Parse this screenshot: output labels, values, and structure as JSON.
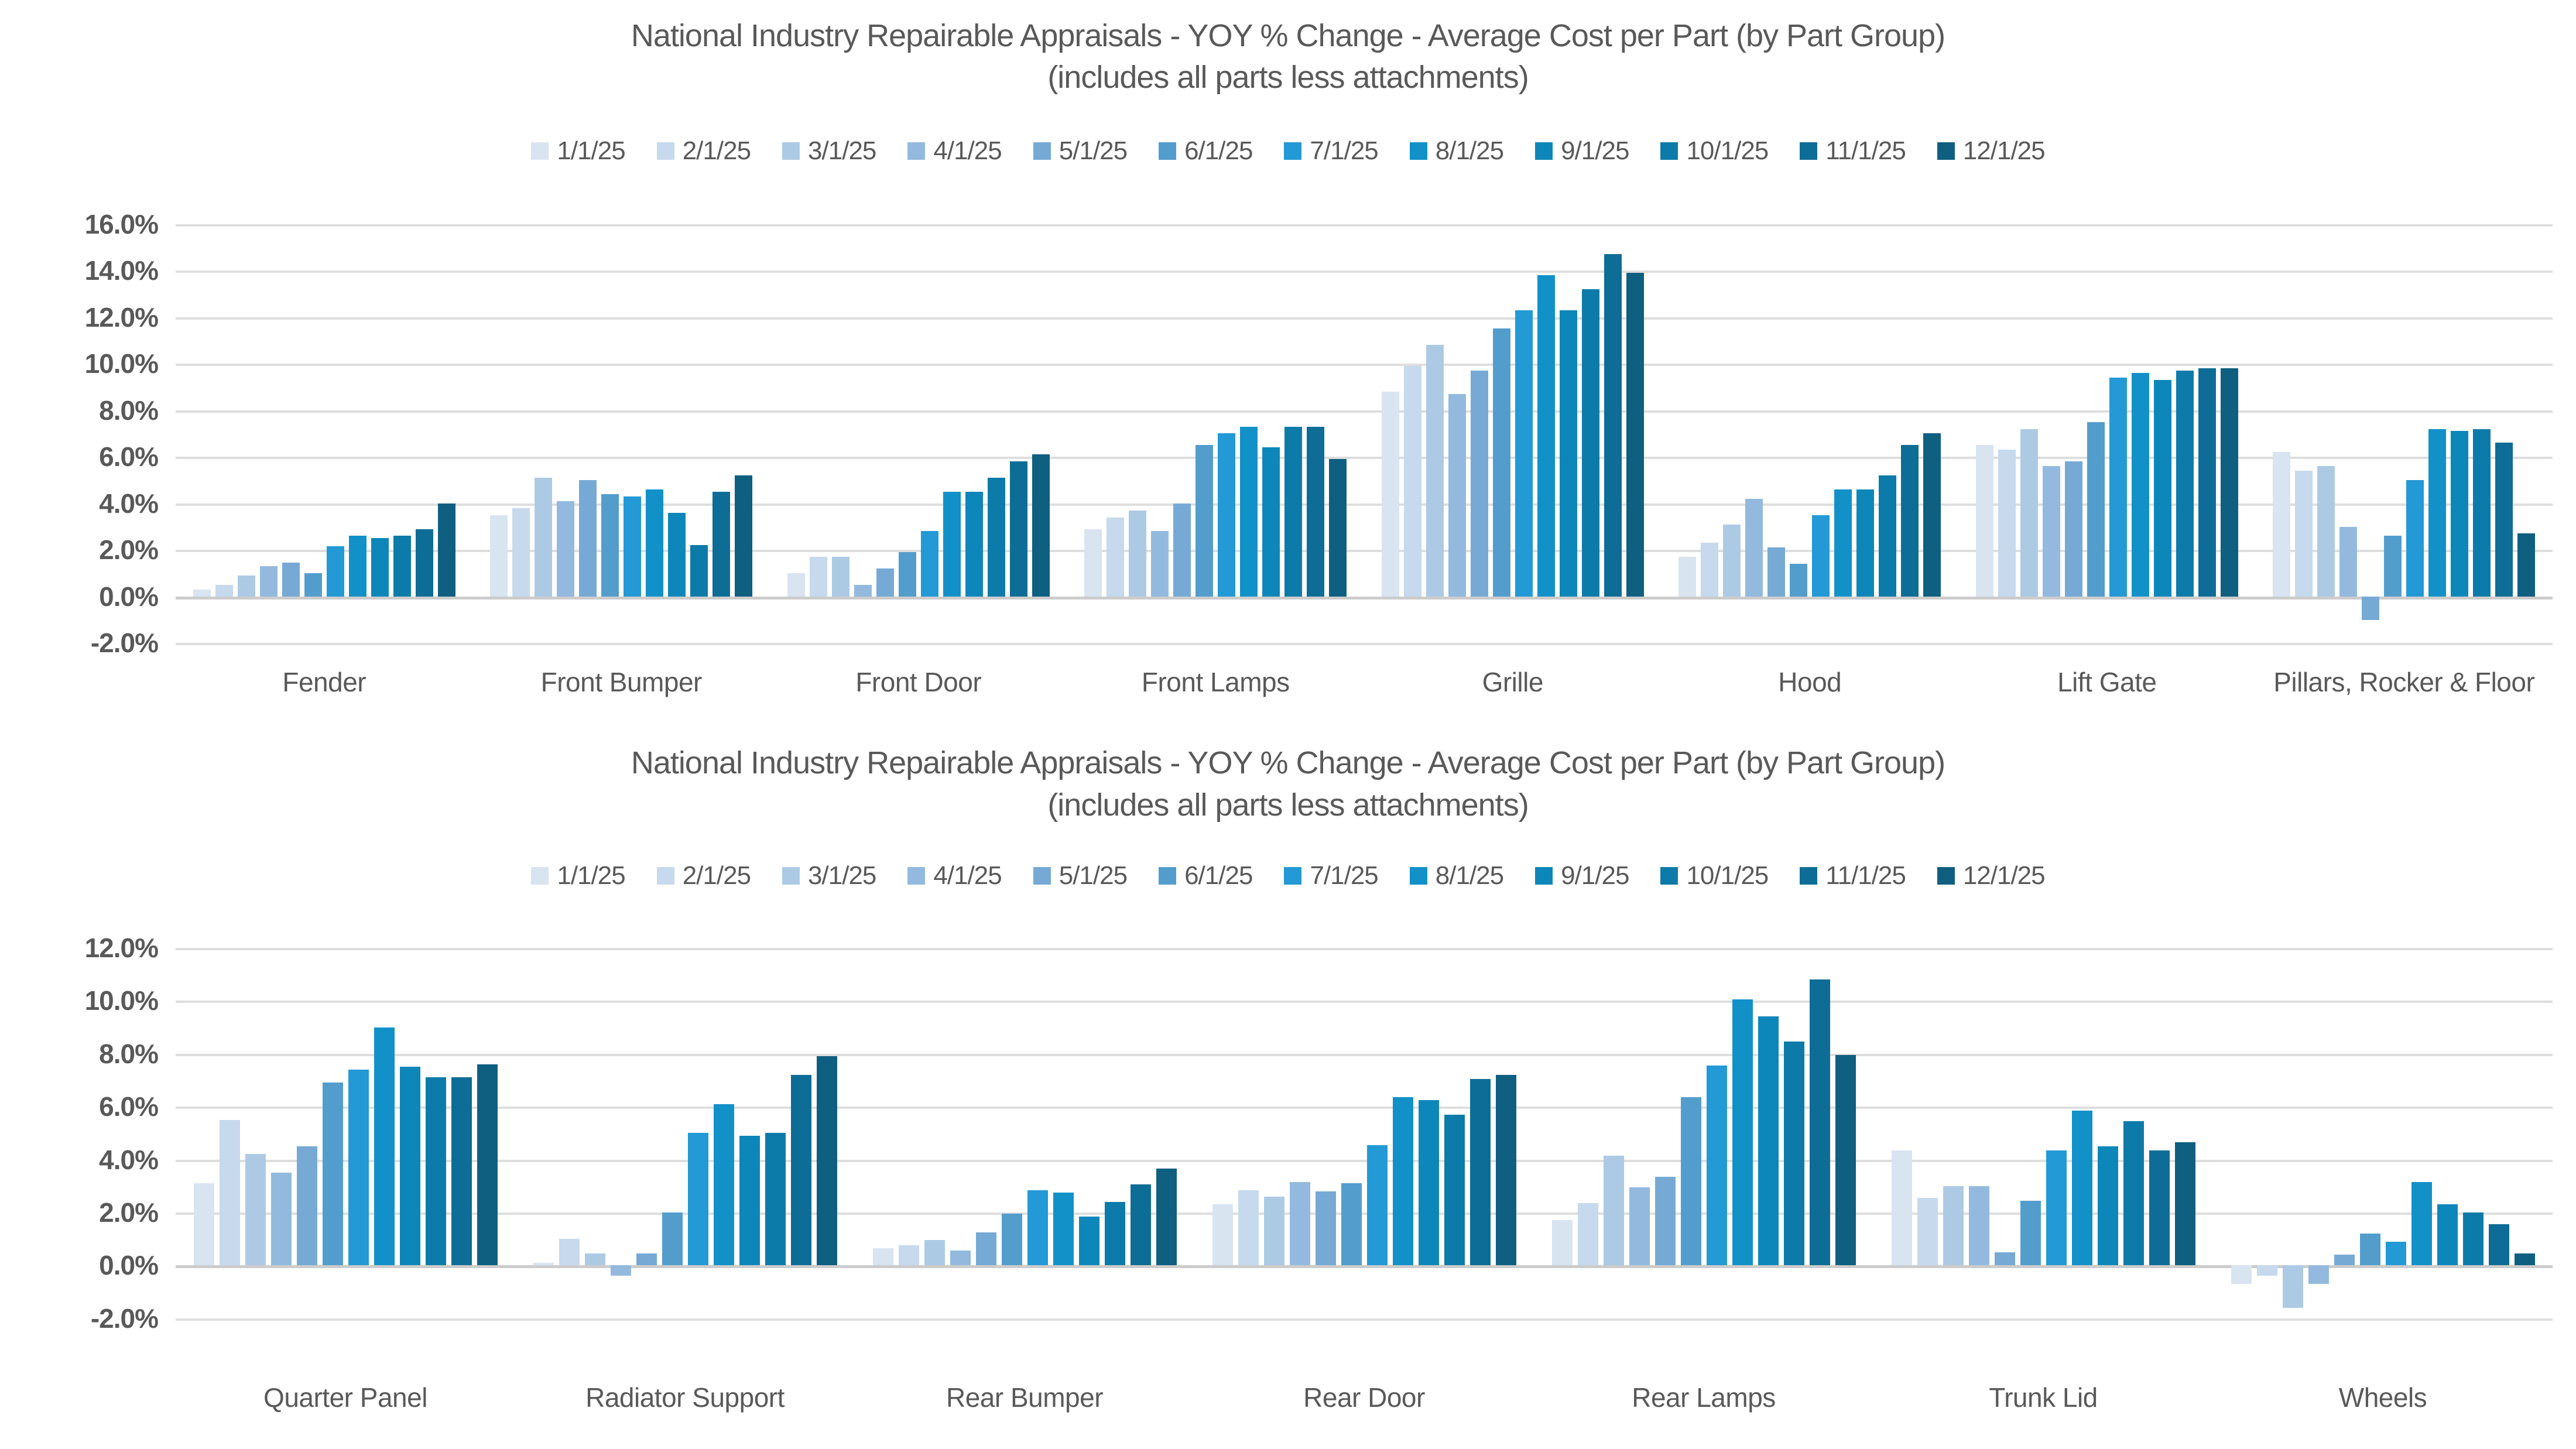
{
  "palette": [
    "#d9e4f1",
    "#c6d9ed",
    "#adcae5",
    "#93bade",
    "#76aad5",
    "#539dcd",
    "#2399d6",
    "#1291c9",
    "#0d87ba",
    "#0d7ba9",
    "#0e6d96",
    "#0f5f81"
  ],
  "text_color": "#595959",
  "chart_data": [
    {
      "type": "bar",
      "title": "National Industry Repairable Appraisals - YOY % Change - Average Cost per Part (by Part Group)",
      "subtitle": "(includes all parts less attachments)",
      "legend_position": "top",
      "grid": true,
      "ylim": [
        -2,
        16
      ],
      "ystep": 2,
      "y_tick_labels": [
        "16.0%",
        "14.0%",
        "12.0%",
        "10.0%",
        "8.0%",
        "6.0%",
        "4.0%",
        "2.0%",
        "0.0%",
        "-2.0%"
      ],
      "categories": [
        "Fender",
        "Front Bumper",
        "Front Door",
        "Front Lamps",
        "Grille",
        "Hood",
        "Lift Gate",
        "Pillars, Rocker & Floor"
      ],
      "series": [
        {
          "name": "1/1/25",
          "values": [
            0.3,
            3.5,
            1.0,
            2.9,
            8.8,
            1.7,
            6.5,
            6.2
          ]
        },
        {
          "name": "2/1/25",
          "values": [
            0.5,
            3.8,
            1.7,
            3.4,
            9.9,
            2.3,
            6.3,
            5.4
          ]
        },
        {
          "name": "3/1/25",
          "values": [
            0.9,
            5.1,
            1.7,
            3.7,
            10.8,
            3.1,
            7.2,
            5.6
          ]
        },
        {
          "name": "4/1/25",
          "values": [
            1.3,
            4.1,
            0.5,
            2.8,
            8.7,
            4.2,
            5.6,
            3.0
          ]
        },
        {
          "name": "5/1/25",
          "values": [
            1.45,
            5.0,
            1.2,
            4.0,
            9.7,
            2.1,
            5.8,
            -1.0
          ]
        },
        {
          "name": "6/1/25",
          "values": [
            1.0,
            4.4,
            1.9,
            6.5,
            11.5,
            1.4,
            7.5,
            2.6
          ]
        },
        {
          "name": "7/1/25",
          "values": [
            2.15,
            4.3,
            2.8,
            7.0,
            12.3,
            3.5,
            9.4,
            5.0
          ]
        },
        {
          "name": "8/1/25",
          "values": [
            2.6,
            4.6,
            4.5,
            7.3,
            13.8,
            4.6,
            9.6,
            7.2
          ]
        },
        {
          "name": "9/1/25",
          "values": [
            2.5,
            3.6,
            4.5,
            6.4,
            12.3,
            4.6,
            9.3,
            7.1
          ]
        },
        {
          "name": "10/1/25",
          "values": [
            2.6,
            2.2,
            5.1,
            7.3,
            13.2,
            5.2,
            9.7,
            7.2
          ]
        },
        {
          "name": "11/1/25",
          "values": [
            2.9,
            4.5,
            5.8,
            7.3,
            14.7,
            6.5,
            9.8,
            6.6
          ]
        },
        {
          "name": "12/1/25",
          "values": [
            4.0,
            5.2,
            6.1,
            5.9,
            13.9,
            7.0,
            9.8,
            2.7
          ]
        }
      ]
    },
    {
      "type": "bar",
      "title": "National Industry Repairable Appraisals - YOY % Change - Average Cost per Part (by Part Group)",
      "subtitle": "(includes all parts less attachments)",
      "legend_position": "top",
      "grid": true,
      "ylim": [
        -2,
        12
      ],
      "ystep": 2,
      "y_tick_labels": [
        "12.0%",
        "10.0%",
        "8.0%",
        "6.0%",
        "4.0%",
        "2.0%",
        "0.0%",
        "-2.0%"
      ],
      "categories": [
        "Quarter Panel",
        "Radiator Support",
        "Rear Bumper",
        "Rear Door",
        "Rear Lamps",
        "Trunk Lid",
        "Wheels"
      ],
      "series": [
        {
          "name": "1/1/25",
          "values": [
            3.1,
            0.1,
            0.65,
            2.3,
            1.7,
            4.35,
            -0.7
          ]
        },
        {
          "name": "2/1/25",
          "values": [
            5.5,
            1.0,
            0.75,
            2.85,
            2.35,
            2.55,
            -0.4
          ]
        },
        {
          "name": "3/1/25",
          "values": [
            4.2,
            0.45,
            0.95,
            2.6,
            4.15,
            3.0,
            -1.6
          ]
        },
        {
          "name": "4/1/25",
          "values": [
            3.5,
            -0.4,
            0.55,
            3.15,
            2.95,
            3.0,
            -0.7
          ]
        },
        {
          "name": "5/1/25",
          "values": [
            4.5,
            0.45,
            1.25,
            2.8,
            3.35,
            0.5,
            0.4
          ]
        },
        {
          "name": "6/1/25",
          "values": [
            6.9,
            2.0,
            1.95,
            3.1,
            6.35,
            2.45,
            1.2
          ]
        },
        {
          "name": "7/1/25",
          "values": [
            7.4,
            5.0,
            2.85,
            4.55,
            7.55,
            4.35,
            0.9
          ]
        },
        {
          "name": "8/1/25",
          "values": [
            9.0,
            6.1,
            2.75,
            6.35,
            10.05,
            5.85,
            3.15
          ]
        },
        {
          "name": "9/1/25",
          "values": [
            7.5,
            4.9,
            1.85,
            6.25,
            9.4,
            4.5,
            2.3
          ]
        },
        {
          "name": "10/1/25",
          "values": [
            7.1,
            5.0,
            2.4,
            5.7,
            8.45,
            5.45,
            2.0
          ]
        },
        {
          "name": "11/1/25",
          "values": [
            7.1,
            7.2,
            3.05,
            7.05,
            10.8,
            4.35,
            1.55
          ]
        },
        {
          "name": "12/1/25",
          "values": [
            7.6,
            7.9,
            3.65,
            7.2,
            7.95,
            4.65,
            0.45
          ]
        }
      ]
    }
  ]
}
